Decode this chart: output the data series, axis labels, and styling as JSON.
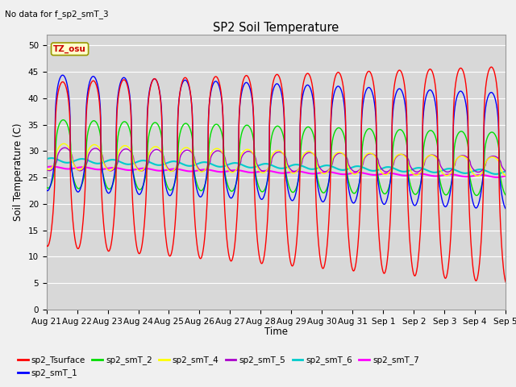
{
  "title": "SP2 Soil Temperature",
  "subtitle": "No data for f_sp2_smT_3",
  "ylabel": "Soil Temperature (C)",
  "xlabel": "Time",
  "tz_label": "TZ_osu",
  "ylim": [
    0,
    52
  ],
  "yticks": [
    0,
    5,
    10,
    15,
    20,
    25,
    30,
    35,
    40,
    45,
    50
  ],
  "x_tick_labels": [
    "Aug 21",
    "Aug 22",
    "Aug 23",
    "Aug 24",
    "Aug 25",
    "Aug 26",
    "Aug 27",
    "Aug 28",
    "Aug 29",
    "Aug 30",
    "Aug 31",
    "Sep 1",
    "Sep 2",
    "Sep 3",
    "Sep 4",
    "Sep 5"
  ],
  "colors": {
    "sp2_Tsurface": "#ff0000",
    "sp2_smT_1": "#0000ff",
    "sp2_smT_2": "#00dd00",
    "sp2_smT_4": "#ffff00",
    "sp2_smT_5": "#aa00cc",
    "sp2_smT_6": "#00cccc",
    "sp2_smT_7": "#ff00ff"
  },
  "bg_color": "#d8d8d8",
  "grid_color": "#ffffff",
  "fig_color": "#f0f0f0"
}
